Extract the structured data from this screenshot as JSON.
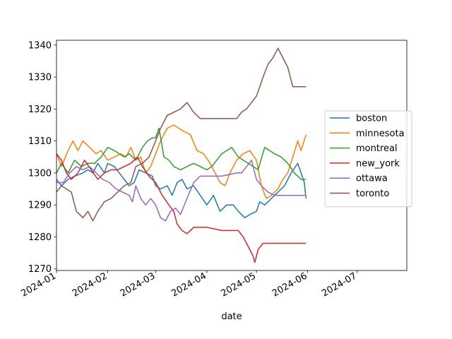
{
  "chart_data": {
    "type": "line",
    "title": "",
    "xlabel": "date",
    "ylabel": "",
    "x_ticks": [
      "2024-01",
      "2024-02",
      "2024-03",
      "2024-04",
      "2024-05",
      "2024-06",
      "2024-07"
    ],
    "y_ticks": [
      1270,
      1280,
      1290,
      1300,
      1310,
      1320,
      1330,
      1340
    ],
    "xlim": [
      "2024-01-01",
      "2024-07-31"
    ],
    "ylim": [
      1269.5,
      1341.5
    ],
    "grid": false,
    "legend_position": "center-right",
    "series": [
      {
        "name": "boston",
        "color": "#1f77b4",
        "points": [
          [
            "2024-01-01",
            1298
          ],
          [
            "2024-01-04",
            1296
          ],
          [
            "2024-01-08",
            1298
          ],
          [
            "2024-01-12",
            1299
          ],
          [
            "2024-01-17",
            1300
          ],
          [
            "2024-01-20",
            1301
          ],
          [
            "2024-01-23",
            1300
          ],
          [
            "2024-01-26",
            1303
          ],
          [
            "2024-01-30",
            1300
          ],
          [
            "2024-02-01",
            1303
          ],
          [
            "2024-02-05",
            1302
          ],
          [
            "2024-02-08",
            1300
          ],
          [
            "2024-02-11",
            1298
          ],
          [
            "2024-02-14",
            1296
          ],
          [
            "2024-02-17",
            1297
          ],
          [
            "2024-02-20",
            1301
          ],
          [
            "2024-02-24",
            1300
          ],
          [
            "2024-02-28",
            1299
          ],
          [
            "2024-03-01",
            1296
          ],
          [
            "2024-03-04",
            1295
          ],
          [
            "2024-03-08",
            1296
          ],
          [
            "2024-03-11",
            1293
          ],
          [
            "2024-03-14",
            1297
          ],
          [
            "2024-03-17",
            1298
          ],
          [
            "2024-03-20",
            1295
          ],
          [
            "2024-03-24",
            1296
          ],
          [
            "2024-03-28",
            1293
          ],
          [
            "2024-04-01",
            1290
          ],
          [
            "2024-04-05",
            1293
          ],
          [
            "2024-04-09",
            1288
          ],
          [
            "2024-04-13",
            1290
          ],
          [
            "2024-04-17",
            1290
          ],
          [
            "2024-04-20",
            1288
          ],
          [
            "2024-04-22",
            1287
          ],
          [
            "2024-04-24",
            1286
          ],
          [
            "2024-04-27",
            1287
          ],
          [
            "2024-05-01",
            1288
          ],
          [
            "2024-05-03",
            1291
          ],
          [
            "2024-05-06",
            1290
          ],
          [
            "2024-05-10",
            1292
          ],
          [
            "2024-05-14",
            1294
          ],
          [
            "2024-05-18",
            1296
          ],
          [
            "2024-05-22",
            1300
          ],
          [
            "2024-05-26",
            1303
          ],
          [
            "2024-05-28",
            1300
          ],
          [
            "2024-05-30",
            1297
          ],
          [
            "2024-05-31",
            1292
          ]
        ]
      },
      {
        "name": "minnesota",
        "color": "#ff7f0e",
        "points": [
          [
            "2024-01-01",
            1306
          ],
          [
            "2024-01-04",
            1302
          ],
          [
            "2024-01-08",
            1307
          ],
          [
            "2024-01-11",
            1310
          ],
          [
            "2024-01-14",
            1307
          ],
          [
            "2024-01-17",
            1310
          ],
          [
            "2024-01-21",
            1308
          ],
          [
            "2024-01-25",
            1306
          ],
          [
            "2024-01-28",
            1307
          ],
          [
            "2024-02-01",
            1304
          ],
          [
            "2024-02-05",
            1305
          ],
          [
            "2024-02-09",
            1306
          ],
          [
            "2024-02-12",
            1305
          ],
          [
            "2024-02-15",
            1308
          ],
          [
            "2024-02-18",
            1304
          ],
          [
            "2024-02-21",
            1305
          ],
          [
            "2024-02-24",
            1300
          ],
          [
            "2024-02-27",
            1302
          ],
          [
            "2024-03-01",
            1306
          ],
          [
            "2024-03-04",
            1310
          ],
          [
            "2024-03-08",
            1314
          ],
          [
            "2024-03-12",
            1315
          ],
          [
            "2024-03-15",
            1314
          ],
          [
            "2024-03-18",
            1313
          ],
          [
            "2024-03-22",
            1312
          ],
          [
            "2024-03-26",
            1307
          ],
          [
            "2024-03-30",
            1306
          ],
          [
            "2024-04-03",
            1303
          ],
          [
            "2024-04-06",
            1300
          ],
          [
            "2024-04-09",
            1297
          ],
          [
            "2024-04-12",
            1296
          ],
          [
            "2024-04-15",
            1300
          ],
          [
            "2024-04-19",
            1304
          ],
          [
            "2024-04-23",
            1306
          ],
          [
            "2024-04-27",
            1307
          ],
          [
            "2024-05-01",
            1304
          ],
          [
            "2024-05-04",
            1296
          ],
          [
            "2024-05-07",
            1292
          ],
          [
            "2024-05-10",
            1293
          ],
          [
            "2024-05-14",
            1295
          ],
          [
            "2024-05-17",
            1298
          ],
          [
            "2024-05-20",
            1300
          ],
          [
            "2024-05-23",
            1305
          ],
          [
            "2024-05-26",
            1310
          ],
          [
            "2024-05-28",
            1307
          ],
          [
            "2024-05-31",
            1312
          ]
        ]
      },
      {
        "name": "montreal",
        "color": "#2ca02c",
        "points": [
          [
            "2024-01-01",
            1300
          ],
          [
            "2024-01-04",
            1303
          ],
          [
            "2024-01-08",
            1300
          ],
          [
            "2024-01-12",
            1304
          ],
          [
            "2024-01-16",
            1302
          ],
          [
            "2024-01-20",
            1303
          ],
          [
            "2024-01-24",
            1303
          ],
          [
            "2024-01-28",
            1305
          ],
          [
            "2024-02-01",
            1308
          ],
          [
            "2024-02-05",
            1307
          ],
          [
            "2024-02-08",
            1306
          ],
          [
            "2024-02-11",
            1305
          ],
          [
            "2024-02-14",
            1306
          ],
          [
            "2024-02-18",
            1304
          ],
          [
            "2024-02-22",
            1308
          ],
          [
            "2024-02-25",
            1310
          ],
          [
            "2024-02-28",
            1311
          ],
          [
            "2024-03-01",
            1311
          ],
          [
            "2024-03-03",
            1314
          ],
          [
            "2024-03-06",
            1305
          ],
          [
            "2024-03-09",
            1304
          ],
          [
            "2024-03-12",
            1302
          ],
          [
            "2024-03-16",
            1301
          ],
          [
            "2024-03-20",
            1302
          ],
          [
            "2024-03-24",
            1303
          ],
          [
            "2024-03-28",
            1302
          ],
          [
            "2024-04-01",
            1301
          ],
          [
            "2024-04-04",
            1302
          ],
          [
            "2024-04-07",
            1304
          ],
          [
            "2024-04-10",
            1306
          ],
          [
            "2024-04-13",
            1307
          ],
          [
            "2024-04-16",
            1308
          ],
          [
            "2024-04-20",
            1305
          ],
          [
            "2024-04-23",
            1304
          ],
          [
            "2024-04-26",
            1303
          ],
          [
            "2024-04-29",
            1302
          ],
          [
            "2024-05-02",
            1301
          ],
          [
            "2024-05-06",
            1308
          ],
          [
            "2024-05-09",
            1307
          ],
          [
            "2024-05-12",
            1306
          ],
          [
            "2024-05-16",
            1305
          ],
          [
            "2024-05-20",
            1303
          ],
          [
            "2024-05-24",
            1300
          ],
          [
            "2024-05-28",
            1298
          ],
          [
            "2024-05-31",
            1298
          ]
        ]
      },
      {
        "name": "new_york",
        "color": "#d62728",
        "points": [
          [
            "2024-01-01",
            1306
          ],
          [
            "2024-01-04",
            1304
          ],
          [
            "2024-01-07",
            1300
          ],
          [
            "2024-01-10",
            1298
          ],
          [
            "2024-01-14",
            1300
          ],
          [
            "2024-01-18",
            1304
          ],
          [
            "2024-01-22",
            1301
          ],
          [
            "2024-01-26",
            1298
          ],
          [
            "2024-01-30",
            1300
          ],
          [
            "2024-02-03",
            1301
          ],
          [
            "2024-02-07",
            1301
          ],
          [
            "2024-02-11",
            1302
          ],
          [
            "2024-02-15",
            1303
          ],
          [
            "2024-02-19",
            1305
          ],
          [
            "2024-02-22",
            1302
          ],
          [
            "2024-02-26",
            1299
          ],
          [
            "2024-03-01",
            1297
          ],
          [
            "2024-03-05",
            1293
          ],
          [
            "2024-03-09",
            1290
          ],
          [
            "2024-03-12",
            1288
          ],
          [
            "2024-03-14",
            1284
          ],
          [
            "2024-03-17",
            1282
          ],
          [
            "2024-03-20",
            1281
          ],
          [
            "2024-03-24",
            1283
          ],
          [
            "2024-03-28",
            1283
          ],
          [
            "2024-04-01",
            1283
          ],
          [
            "2024-04-10",
            1282
          ],
          [
            "2024-04-20",
            1282
          ],
          [
            "2024-04-23",
            1280
          ],
          [
            "2024-04-26",
            1277
          ],
          [
            "2024-04-29",
            1274
          ],
          [
            "2024-04-30",
            1272
          ],
          [
            "2024-05-02",
            1276
          ],
          [
            "2024-05-05",
            1278
          ],
          [
            "2024-05-15",
            1278
          ],
          [
            "2024-05-31",
            1278
          ]
        ]
      },
      {
        "name": "ottawa",
        "color": "#9467bd",
        "points": [
          [
            "2024-01-01",
            1297
          ],
          [
            "2024-01-05",
            1297
          ],
          [
            "2024-01-09",
            1300
          ],
          [
            "2024-01-13",
            1302
          ],
          [
            "2024-01-17",
            1301
          ],
          [
            "2024-01-21",
            1302
          ],
          [
            "2024-01-25",
            1300
          ],
          [
            "2024-01-29",
            1298
          ],
          [
            "2024-02-02",
            1297
          ],
          [
            "2024-02-06",
            1295
          ],
          [
            "2024-02-10",
            1294
          ],
          [
            "2024-02-14",
            1293
          ],
          [
            "2024-02-16",
            1291
          ],
          [
            "2024-02-18",
            1296
          ],
          [
            "2024-02-21",
            1292
          ],
          [
            "2024-02-24",
            1290
          ],
          [
            "2024-02-27",
            1292
          ],
          [
            "2024-03-01",
            1290
          ],
          [
            "2024-03-04",
            1286
          ],
          [
            "2024-03-07",
            1285
          ],
          [
            "2024-03-10",
            1288
          ],
          [
            "2024-03-13",
            1289
          ],
          [
            "2024-03-16",
            1287
          ],
          [
            "2024-03-20",
            1292
          ],
          [
            "2024-03-24",
            1297
          ],
          [
            "2024-03-28",
            1299
          ],
          [
            "2024-04-01",
            1299
          ],
          [
            "2024-04-10",
            1299
          ],
          [
            "2024-04-19",
            1300
          ],
          [
            "2024-04-22",
            1300
          ],
          [
            "2024-04-25",
            1302
          ],
          [
            "2024-04-28",
            1304
          ],
          [
            "2024-05-01",
            1298
          ],
          [
            "2024-05-04",
            1296
          ],
          [
            "2024-05-08",
            1294
          ],
          [
            "2024-05-12",
            1293
          ],
          [
            "2024-05-20",
            1293
          ],
          [
            "2024-05-31",
            1293
          ]
        ]
      },
      {
        "name": "toronto",
        "color": "#8c564b",
        "points": [
          [
            "2024-01-01",
            1294
          ],
          [
            "2024-01-04",
            1296
          ],
          [
            "2024-01-07",
            1295
          ],
          [
            "2024-01-10",
            1294
          ],
          [
            "2024-01-13",
            1288
          ],
          [
            "2024-01-17",
            1286
          ],
          [
            "2024-01-20",
            1288
          ],
          [
            "2024-01-23",
            1285
          ],
          [
            "2024-01-26",
            1288
          ],
          [
            "2024-01-30",
            1291
          ],
          [
            "2024-02-03",
            1292
          ],
          [
            "2024-02-07",
            1294
          ],
          [
            "2024-02-11",
            1296
          ],
          [
            "2024-02-15",
            1297
          ],
          [
            "2024-02-18",
            1302
          ],
          [
            "2024-02-22",
            1303
          ],
          [
            "2024-02-26",
            1305
          ],
          [
            "2024-03-01",
            1310
          ],
          [
            "2024-03-04",
            1314
          ],
          [
            "2024-03-08",
            1318
          ],
          [
            "2024-03-12",
            1319
          ],
          [
            "2024-03-16",
            1320
          ],
          [
            "2024-03-20",
            1322
          ],
          [
            "2024-03-24",
            1319
          ],
          [
            "2024-03-28",
            1317
          ],
          [
            "2024-04-01",
            1317
          ],
          [
            "2024-04-10",
            1317
          ],
          [
            "2024-04-19",
            1317
          ],
          [
            "2024-04-22",
            1319
          ],
          [
            "2024-04-25",
            1320
          ],
          [
            "2024-04-28",
            1322
          ],
          [
            "2024-05-01",
            1324
          ],
          [
            "2024-05-03",
            1327
          ],
          [
            "2024-05-05",
            1330
          ],
          [
            "2024-05-08",
            1334
          ],
          [
            "2024-05-11",
            1336
          ],
          [
            "2024-05-14",
            1339
          ],
          [
            "2024-05-17",
            1336
          ],
          [
            "2024-05-20",
            1333
          ],
          [
            "2024-05-23",
            1327
          ],
          [
            "2024-05-31",
            1327
          ]
        ]
      }
    ]
  }
}
